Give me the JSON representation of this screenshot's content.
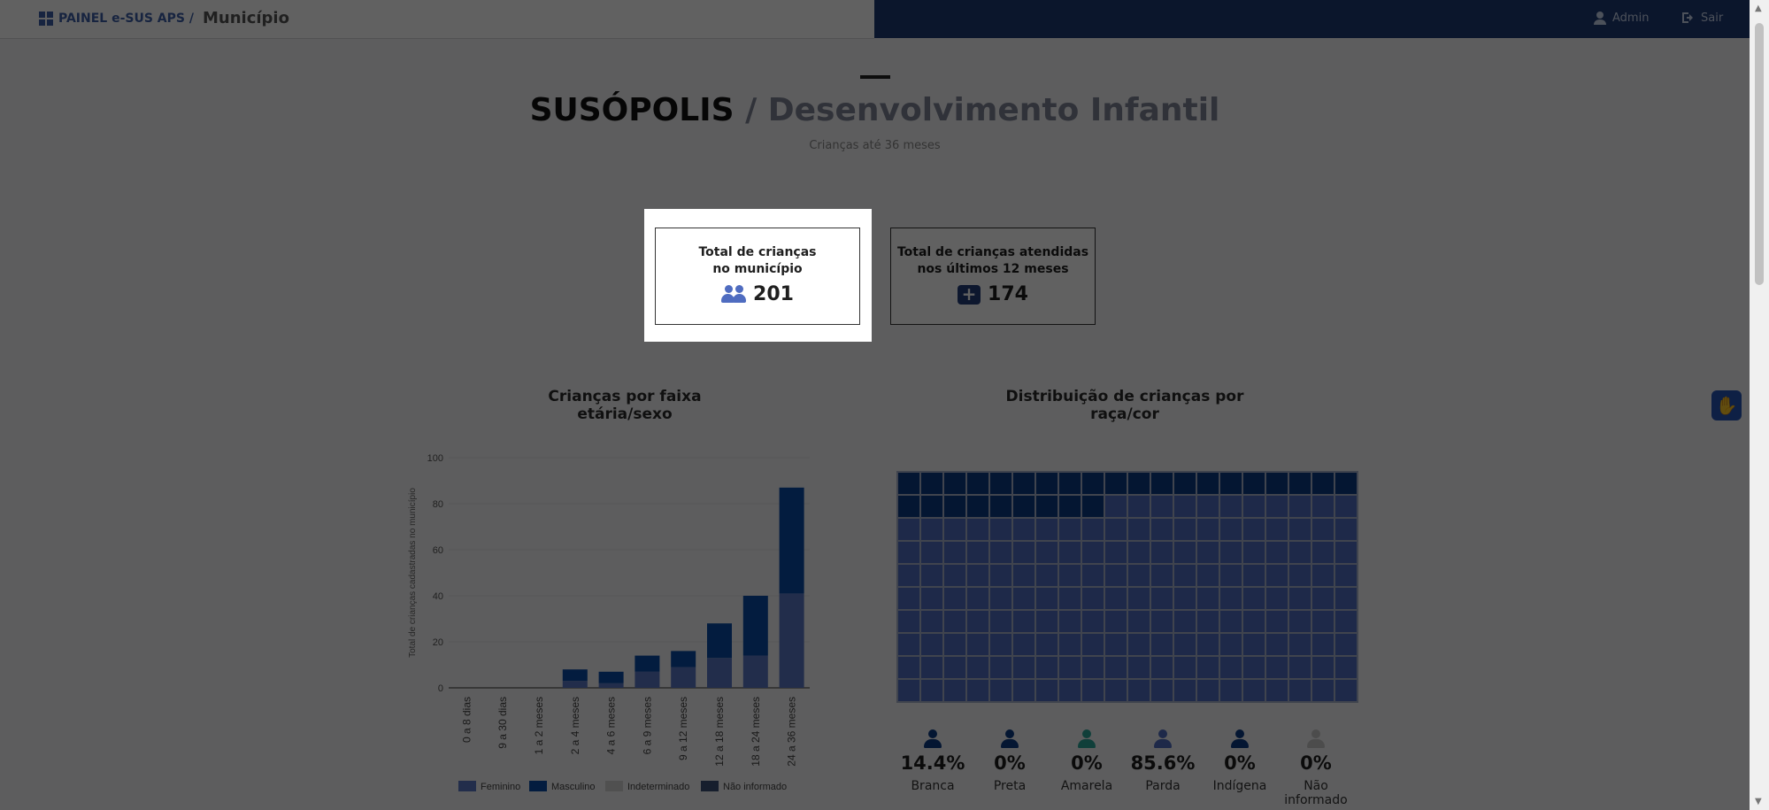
{
  "topbar": {
    "brand": "PAINEL e-SUS APS /",
    "section": "Município",
    "user_label": "Admin",
    "logout_label": "Sair"
  },
  "header": {
    "city": "SUSÓPOLIS",
    "separator": " / ",
    "page": "Desenvolvimento Infantil",
    "subtitle": "Crianças até 36 meses"
  },
  "cards": {
    "total": {
      "label_line1": "Total de crianças",
      "label_line2": "no município",
      "value": "201",
      "icon": "people-icon"
    },
    "attended": {
      "label_line1": "Total de crianças atendidas",
      "label_line2": "nos últimos 12 meses",
      "value": "174",
      "icon": "medical-kit-icon"
    }
  },
  "chart_data": [
    {
      "type": "bar",
      "stacked": true,
      "title": "Crianças por faixa etária/sexo",
      "ylabel": "Total de crianças cadastradas no município",
      "xlabel": "",
      "ylim": [
        0,
        100
      ],
      "yticks": [
        0,
        20,
        40,
        60,
        80,
        100
      ],
      "categories": [
        "0 a 8 dias",
        "9 a 30 dias",
        "1 a 2 meses",
        "2 a 4 meses",
        "4 a 6 meses",
        "6 a 9 meses",
        "9 a 12 meses",
        "12 a 18 meses",
        "18 a 24 meses",
        "24 a 36 meses"
      ],
      "series": [
        {
          "name": "Feminino",
          "color": "#5b77c4",
          "values": [
            0,
            0,
            0,
            3,
            2,
            7,
            9,
            13,
            14,
            41
          ]
        },
        {
          "name": "Masculino",
          "color": "#0a4ba6",
          "values": [
            0,
            0,
            0,
            5,
            5,
            7,
            7,
            15,
            26,
            46
          ]
        },
        {
          "name": "Indeterminado",
          "color": "#d3d3d3",
          "values": [
            0,
            0,
            0,
            0,
            0,
            0,
            0,
            0,
            0,
            0
          ]
        },
        {
          "name": "Não informado",
          "color": "#3b4f77",
          "values": [
            0,
            0,
            0,
            0,
            0,
            0,
            0,
            0,
            0,
            0
          ]
        }
      ],
      "legend_position": "bottom"
    },
    {
      "type": "waffle",
      "title_line1": "Distribuição de crianças por",
      "title_line2": "raça/cor",
      "grid_columns": 20,
      "grid_rows": 10,
      "categories": [
        "Branca",
        "Preta",
        "Amarela",
        "Parda",
        "Indígena",
        "Não informado"
      ],
      "values": [
        14.4,
        0,
        0,
        85.6,
        0,
        0
      ],
      "labels": [
        "14.4%",
        "0%",
        "0%",
        "85.6%",
        "0%",
        "0%"
      ],
      "colors": [
        "#0b3b84",
        "#0b3b84",
        "#2ba59a",
        "#4f6cc0",
        "#0b3b84",
        "#c8c8c8"
      ]
    }
  ],
  "accessibility_button": {
    "icon": "sign-language-icon"
  }
}
